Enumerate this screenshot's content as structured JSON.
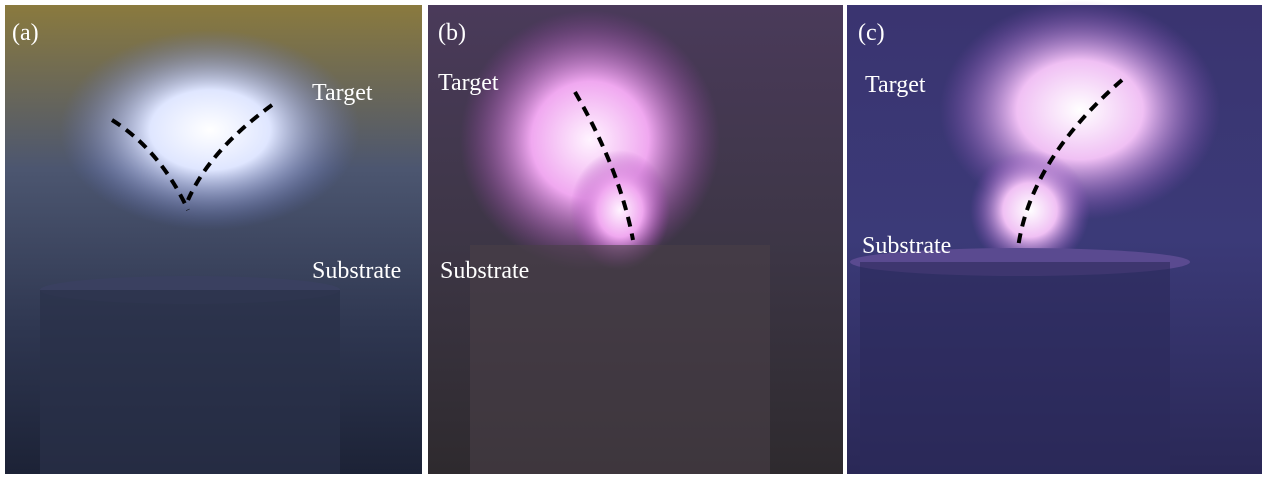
{
  "panels": [
    {
      "label": "(a)",
      "target": "Target",
      "substrate": "Substrate"
    },
    {
      "label": "(b)",
      "target": "Target",
      "substrate": "Substrate"
    },
    {
      "label": "(c)",
      "target": "Target",
      "substrate": "Substrate"
    }
  ]
}
